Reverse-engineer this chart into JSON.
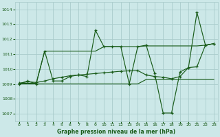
{
  "xlabel": "Graphe pression niveau de la mer (hPa)",
  "bg_color": "#cce8e8",
  "grid_color": "#aacccc",
  "line_color": "#1a5c1a",
  "x": [
    0,
    1,
    2,
    3,
    4,
    5,
    6,
    7,
    8,
    9,
    10,
    11,
    12,
    13,
    14,
    15,
    16,
    17,
    18,
    19,
    20,
    21,
    22,
    23
  ],
  "y_volatile": [
    1009.0,
    1009.2,
    1009.0,
    1011.2,
    1009.2,
    1009.2,
    1009.5,
    1009.6,
    1009.5,
    1012.6,
    1011.5,
    1011.5,
    1011.5,
    1009.0,
    1011.5,
    1011.6,
    1009.7,
    1007.05,
    1007.05,
    1009.8,
    1010.1,
    1013.8,
    1011.6,
    1011.7
  ],
  "y_step": [
    1009.05,
    1009.05,
    1009.05,
    1011.2,
    1011.2,
    1011.2,
    1011.2,
    1011.2,
    1011.2,
    1011.2,
    1011.5,
    1011.5,
    1011.5,
    1011.5,
    1011.5,
    1011.55,
    1011.55,
    1011.55,
    1011.55,
    1011.55,
    1011.55,
    1011.55,
    1011.6,
    1011.7
  ],
  "y_smooth": [
    1009.05,
    1009.15,
    1009.1,
    1009.2,
    1009.35,
    1009.45,
    1009.55,
    1009.6,
    1009.65,
    1009.7,
    1009.75,
    1009.8,
    1009.85,
    1009.88,
    1009.9,
    1009.6,
    1009.5,
    1009.45,
    1009.35,
    1009.5,
    1010.1,
    1010.15,
    1011.6,
    1011.7
  ],
  "y_flat": [
    1009.0,
    1009.0,
    1009.0,
    1009.0,
    1009.0,
    1009.0,
    1009.0,
    1009.0,
    1009.0,
    1009.0,
    1009.0,
    1009.0,
    1009.0,
    1009.0,
    1009.0,
    1009.3,
    1009.3,
    1009.3,
    1009.3,
    1009.3,
    1009.3,
    1009.3,
    1009.3,
    1009.3
  ],
  "ylim": [
    1006.5,
    1014.5
  ],
  "yticks": [
    1007,
    1008,
    1009,
    1010,
    1011,
    1012,
    1013,
    1014
  ],
  "xlim": [
    -0.5,
    23.5
  ],
  "xticks": [
    0,
    1,
    2,
    3,
    4,
    5,
    6,
    7,
    8,
    9,
    10,
    11,
    12,
    13,
    14,
    15,
    16,
    17,
    18,
    19,
    20,
    21,
    22,
    23
  ],
  "xlabel_color": "#1a5c1a",
  "tick_color": "#1a5c1a"
}
